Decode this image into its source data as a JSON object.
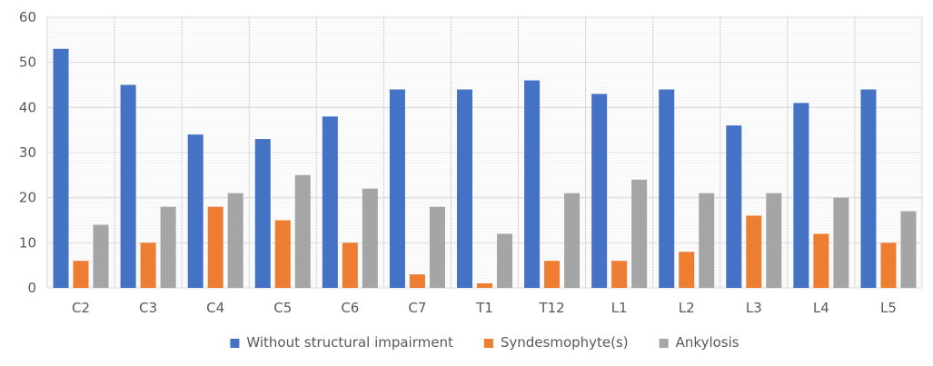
{
  "chart_data": {
    "type": "bar",
    "title": "",
    "xlabel": "",
    "ylabel": "",
    "ylim": [
      0,
      60
    ],
    "yticks": [
      0,
      10,
      20,
      30,
      40,
      50,
      60
    ],
    "grid": true,
    "legend_position": "bottom",
    "categories": [
      "C2",
      "C3",
      "C4",
      "C5",
      "C6",
      "C7",
      "T1",
      "T12",
      "L1",
      "L2",
      "L3",
      "L4",
      "L5"
    ],
    "series": [
      {
        "name": "Without structural impairment",
        "color": "#4472C4",
        "values": [
          53,
          45,
          34,
          33,
          38,
          44,
          44,
          46,
          43,
          44,
          36,
          41,
          44
        ]
      },
      {
        "name": "Syndesmophyte(s)",
        "color": "#ED7D31",
        "values": [
          6,
          10,
          18,
          15,
          10,
          3,
          1,
          6,
          6,
          8,
          16,
          12,
          10
        ]
      },
      {
        "name": "Ankylosis",
        "color": "#A5A5A5",
        "values": [
          14,
          18,
          21,
          25,
          22,
          18,
          12,
          21,
          24,
          21,
          21,
          20,
          17
        ]
      }
    ]
  }
}
